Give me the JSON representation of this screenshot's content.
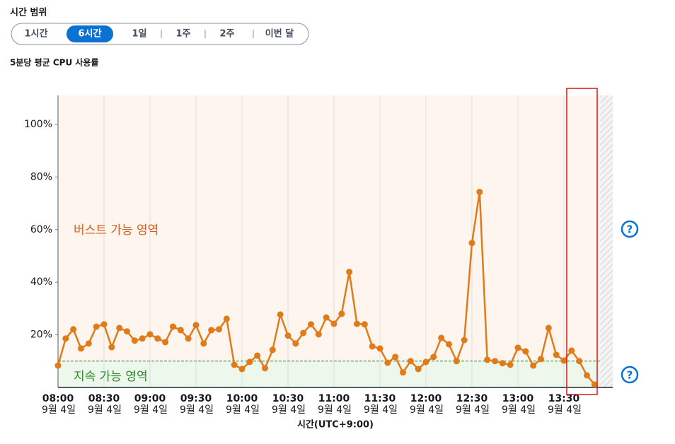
{
  "range_label": "시간 범위",
  "range_buttons": [
    "1시간",
    "6시간",
    "1일",
    "1주",
    "2주",
    "이번 달"
  ],
  "selected_button": 1,
  "help_label": "?",
  "chart_data": {
    "type": "line",
    "title": "5분당 평균 CPU 사용률",
    "xlabel": "시간(UTC+9:00)",
    "annotations": [
      "버스트 가능 영역",
      "지속 가능 영역"
    ],
    "baseline": 10,
    "color": "#e07b1a",
    "x": [
      "08:00",
      "08:05",
      "08:10",
      "08:15",
      "08:20",
      "08:25",
      "08:30",
      "08:35",
      "08:40",
      "08:45",
      "08:50",
      "08:55",
      "09:00",
      "09:05",
      "09:10",
      "09:15",
      "09:20",
      "09:25",
      "09:30",
      "09:35",
      "09:40",
      "09:45",
      "09:50",
      "09:55",
      "10:00",
      "10:05",
      "10:10",
      "10:15",
      "10:20",
      "10:25",
      "10:30",
      "10:35",
      "10:40",
      "10:45",
      "10:50",
      "10:55",
      "11:00",
      "11:05",
      "11:10",
      "11:15",
      "11:20",
      "11:25",
      "11:30",
      "11:35",
      "11:40",
      "11:45",
      "11:50",
      "11:55",
      "12:00",
      "12:05",
      "12:10",
      "12:15",
      "12:20",
      "12:25",
      "12:30",
      "12:35",
      "12:40",
      "12:45",
      "12:50",
      "12:55",
      "13:00",
      "13:05",
      "13:10",
      "13:15",
      "13:20",
      "13:25",
      "13:30",
      "13:35",
      "13:40",
      "13:45",
      "13:50"
    ],
    "values": [
      8.3,
      18.6,
      22.1,
      14.8,
      16.7,
      23.1,
      24,
      15.3,
      22.6,
      21.3,
      17.8,
      18.6,
      20.2,
      18.6,
      17.2,
      23.1,
      21.8,
      18.6,
      23.7,
      16.7,
      21.8,
      22.1,
      26.1,
      8.6,
      7,
      9.7,
      12.1,
      7.3,
      14.3,
      27.7,
      19.7,
      16.7,
      20.7,
      24,
      20.2,
      26.6,
      24.2,
      28,
      43.9,
      24.2,
      24,
      15.6,
      14.8,
      9.4,
      11.6,
      5.7,
      10,
      7,
      9.7,
      11.6,
      18.8,
      16.4,
      10,
      18,
      54.9,
      74.3,
      10.5,
      10,
      9.2,
      8.6,
      15.1,
      13.7,
      8.3,
      10.8,
      22.6,
      12.4,
      10.2,
      14,
      10,
      4.6,
      1.1
    ],
    "xlim": [
      "08:00",
      "14:00"
    ],
    "xticks": [
      {
        "value": "08:00",
        "label": "08:00",
        "date": "9월 4일"
      },
      {
        "value": "08:30",
        "label": "08:30",
        "date": "9월 4일"
      },
      {
        "value": "09:00",
        "label": "09:00",
        "date": "9월 4일"
      },
      {
        "value": "09:30",
        "label": "09:30",
        "date": "9월 4일"
      },
      {
        "value": "10:00",
        "label": "10:00",
        "date": "9월 4일"
      },
      {
        "value": "10:30",
        "label": "10:30",
        "date": "9월 4일"
      },
      {
        "value": "11:00",
        "label": "11:00",
        "date": "9월 4일"
      },
      {
        "value": "11:30",
        "label": "11:30",
        "date": "9월 4일"
      },
      {
        "value": "12:00",
        "label": "12:00",
        "date": "9월 4일"
      },
      {
        "value": "12:30",
        "label": "12:30",
        "date": "9월 4일"
      },
      {
        "value": "13:00",
        "label": "13:00",
        "date": "9월 4일"
      },
      {
        "value": "13:30",
        "label": "13:30",
        "date": "9월 4일"
      }
    ],
    "ylim": [
      0,
      111
    ],
    "yticks": [
      {
        "value": 20,
        "label": "20%"
      },
      {
        "value": 40,
        "label": "40%"
      },
      {
        "value": 60,
        "label": "60%"
      },
      {
        "value": 80,
        "label": "80%"
      },
      {
        "value": 100,
        "label": "100%"
      }
    ],
    "grid": true
  }
}
